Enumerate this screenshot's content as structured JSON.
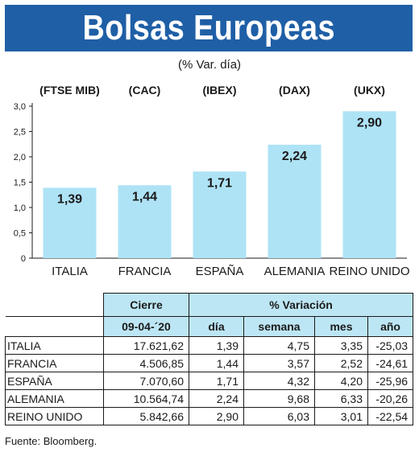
{
  "title": "Bolsas Europeas",
  "subtitle": "(% Var. día)",
  "colors": {
    "banner": "#1f5fa6",
    "bar": "#aee3f6",
    "header": "#bde6f4"
  },
  "chart_data": {
    "type": "bar",
    "categories": [
      "ITALIA",
      "FRANCIA",
      "ESPAÑA",
      "ALEMANIA",
      "REINO UNIDO"
    ],
    "index_names": [
      "(FTSE MIB)",
      "(CAC)",
      "(IBEX)",
      "(DAX)",
      "(UKX)"
    ],
    "values": [
      1.39,
      1.44,
      1.71,
      2.24,
      2.9
    ],
    "value_labels": [
      "1,39",
      "1,44",
      "1,71",
      "2,24",
      "2,90"
    ],
    "yticks": [
      "0",
      "0,5",
      "1,0",
      "1,5",
      "2,0",
      "2,5",
      "3,0"
    ],
    "ylim": [
      0,
      3.0
    ],
    "grid": false
  },
  "table": {
    "header_cierre": "Cierre",
    "header_variacion": "% Variación",
    "date": "09-04-´20",
    "subheaders": [
      "día",
      "semana",
      "mes",
      "año"
    ],
    "rows": [
      {
        "name": "ITALIA",
        "cierre": "17.621,62",
        "dia": "1,39",
        "semana": "4,75",
        "mes": "3,35",
        "anio": "-25,03"
      },
      {
        "name": "FRANCIA",
        "cierre": "4.506,85",
        "dia": "1,44",
        "semana": "3,57",
        "mes": "2,52",
        "anio": "-24,61"
      },
      {
        "name": "ESPAÑA",
        "cierre": "7.070,60",
        "dia": "1,71",
        "semana": "4,32",
        "mes": "4,20",
        "anio": "-25,96"
      },
      {
        "name": "ALEMANIA",
        "cierre": "10.564,74",
        "dia": "2,24",
        "semana": "9,68",
        "mes": "6,33",
        "anio": "-20,26"
      },
      {
        "name": "REINO UNIDO",
        "cierre": "5.842,66",
        "dia": "2,90",
        "semana": "6,03",
        "mes": "3,01",
        "anio": "-22,54"
      }
    ]
  },
  "source": "Fuente: Bloomberg."
}
